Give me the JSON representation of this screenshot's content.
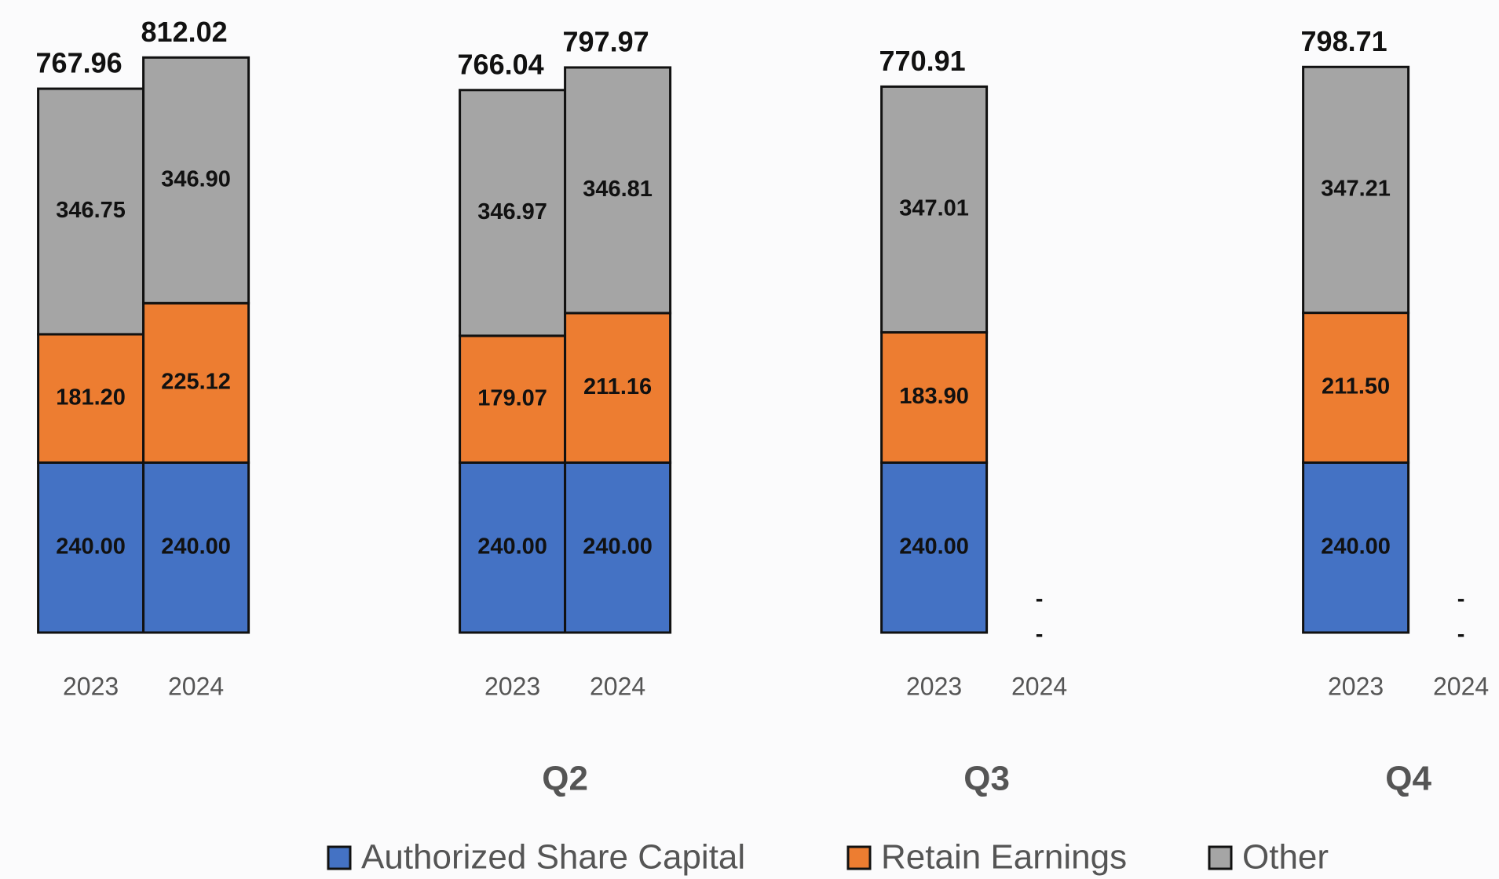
{
  "chart_data": {
    "type": "stacked_bar",
    "groups": [
      null,
      "Q2",
      "Q3",
      "Q4"
    ],
    "categories": [
      "2023",
      "2024",
      "2023",
      "2024",
      "2023",
      "2024",
      "2023",
      "2024"
    ],
    "ylim": [
      0,
      850
    ],
    "series": [
      {
        "name": "Authorized Share Capital",
        "color": "#4472c4",
        "values": [
          240,
          240,
          240,
          240,
          240,
          null,
          240,
          null
        ],
        "value_labels": [
          "240.00",
          "240.00",
          "240.00",
          "240.00",
          "240.00",
          null,
          "240.00",
          null
        ]
      },
      {
        "name": "Retain Earnings",
        "color": "#ed7d31",
        "values": [
          181.2,
          225.12,
          179.07,
          211.16,
          183.9,
          0,
          211.5,
          0
        ],
        "value_labels": [
          "181.20",
          "225.12",
          "179.07",
          "211.16",
          "183.90",
          "-",
          "211.50",
          "-"
        ]
      },
      {
        "name": "Other",
        "color": "#a5a5a5",
        "values": [
          346.75,
          346.9,
          346.97,
          346.81,
          347.01,
          0,
          347.21,
          0
        ],
        "value_labels": [
          "346.75",
          "346.90",
          "346.97",
          "346.81",
          "347.01",
          "-",
          "347.21",
          "-"
        ]
      }
    ],
    "totals": [
      767.96,
      812.02,
      766.04,
      797.97,
      770.91,
      null,
      798.71,
      null
    ]
  }
}
